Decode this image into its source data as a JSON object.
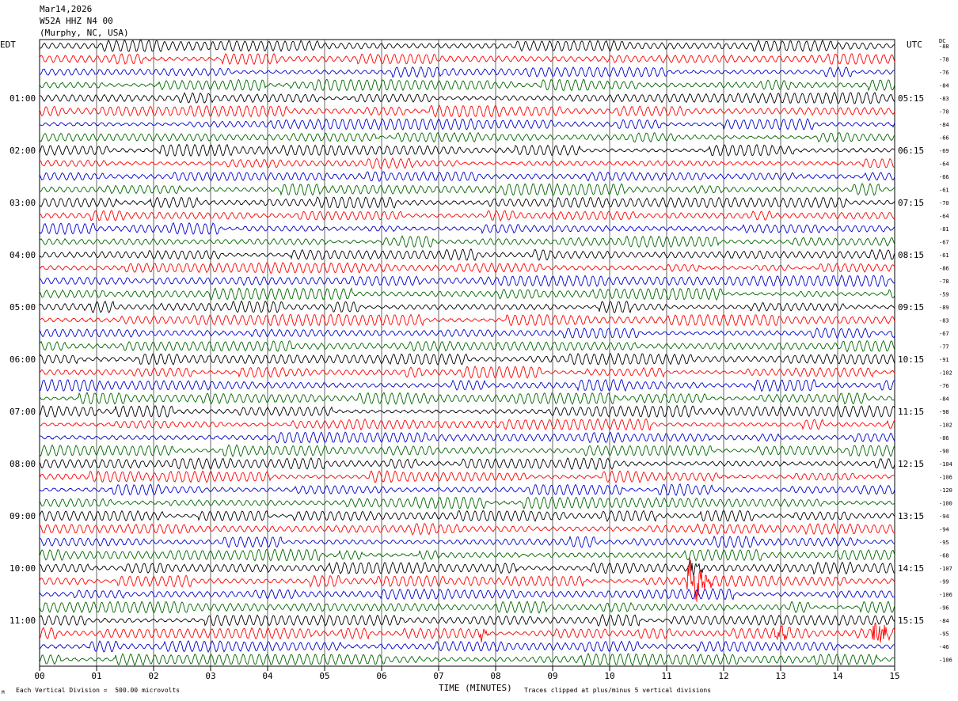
{
  "header": {
    "date": "Mar14,2026",
    "station": "W52A HHZ N4 00",
    "location": "(Murphy, NC, USA)"
  },
  "left_timezone": "EDT",
  "right_timezone": "UTC",
  "dc_label": "DC",
  "footer": {
    "scale_note": "Each Vertical Division =  500.00 microvolts",
    "clip_note": "Traces clipped at plus/minus 5 vertical divisions",
    "corner_mark": "M"
  },
  "colors": {
    "black": "#000000",
    "red": "#ff0000",
    "blue": "#0000cc",
    "green": "#006600",
    "grid": "#000000"
  },
  "chart_data": {
    "type": "line",
    "title": "W52A HHZ N4 00",
    "xlabel": "TIME (MINUTES)",
    "xlim": [
      0,
      15
    ],
    "x_ticks": [
      "00",
      "01",
      "02",
      "03",
      "04",
      "05",
      "06",
      "07",
      "08",
      "09",
      "10",
      "11",
      "12",
      "13",
      "14",
      "15"
    ],
    "rows": 48,
    "row_minutes": 15,
    "trace_color_cycle": [
      "black",
      "red",
      "blue",
      "green"
    ],
    "left_hour_labels": [
      {
        "row": 4,
        "label": "01:00"
      },
      {
        "row": 8,
        "label": "02:00"
      },
      {
        "row": 12,
        "label": "03:00"
      },
      {
        "row": 16,
        "label": "04:00"
      },
      {
        "row": 20,
        "label": "05:00"
      },
      {
        "row": 24,
        "label": "06:00"
      },
      {
        "row": 28,
        "label": "07:00"
      },
      {
        "row": 32,
        "label": "08:00"
      },
      {
        "row": 36,
        "label": "09:00"
      },
      {
        "row": 40,
        "label": "10:00"
      },
      {
        "row": 44,
        "label": "11:00"
      }
    ],
    "right_hour_labels": [
      {
        "row": 4,
        "label": "05:15"
      },
      {
        "row": 8,
        "label": "06:15"
      },
      {
        "row": 12,
        "label": "07:15"
      },
      {
        "row": 16,
        "label": "08:15"
      },
      {
        "row": 20,
        "label": "09:15"
      },
      {
        "row": 24,
        "label": "10:15"
      },
      {
        "row": 28,
        "label": "11:15"
      },
      {
        "row": 32,
        "label": "12:15"
      },
      {
        "row": 36,
        "label": "13:15"
      },
      {
        "row": 40,
        "label": "14:15"
      },
      {
        "row": 44,
        "label": "15:15"
      }
    ],
    "dc_offsets": [
      -88,
      -78,
      -76,
      -84,
      -83,
      -70,
      -84,
      -66,
      -69,
      -64,
      -66,
      -61,
      -70,
      -64,
      -81,
      -67,
      -61,
      -86,
      -78,
      -59,
      -89,
      -83,
      -67,
      -77,
      -91,
      -102,
      -76,
      -84,
      -98,
      -102,
      -86,
      -90,
      -104,
      -106,
      -120,
      -100,
      -94,
      -94,
      -95,
      -68,
      -107,
      -99,
      -106,
      -96,
      -84,
      -95,
      -46,
      -106
    ],
    "events": [
      {
        "row": 41,
        "minute": 11.35,
        "duration": 0.5,
        "amplitude": 38
      },
      {
        "row": 40,
        "minute": 11.4,
        "duration": 0.3,
        "amplitude": 10
      },
      {
        "row": 45,
        "minute": 14.6,
        "duration": 0.4,
        "amplitude": 22
      },
      {
        "row": 45,
        "minute": 7.7,
        "duration": 0.2,
        "amplitude": 9
      },
      {
        "row": 45,
        "minute": 12.9,
        "duration": 0.4,
        "amplitude": 8
      }
    ],
    "amplitude_divisions": 1
  }
}
